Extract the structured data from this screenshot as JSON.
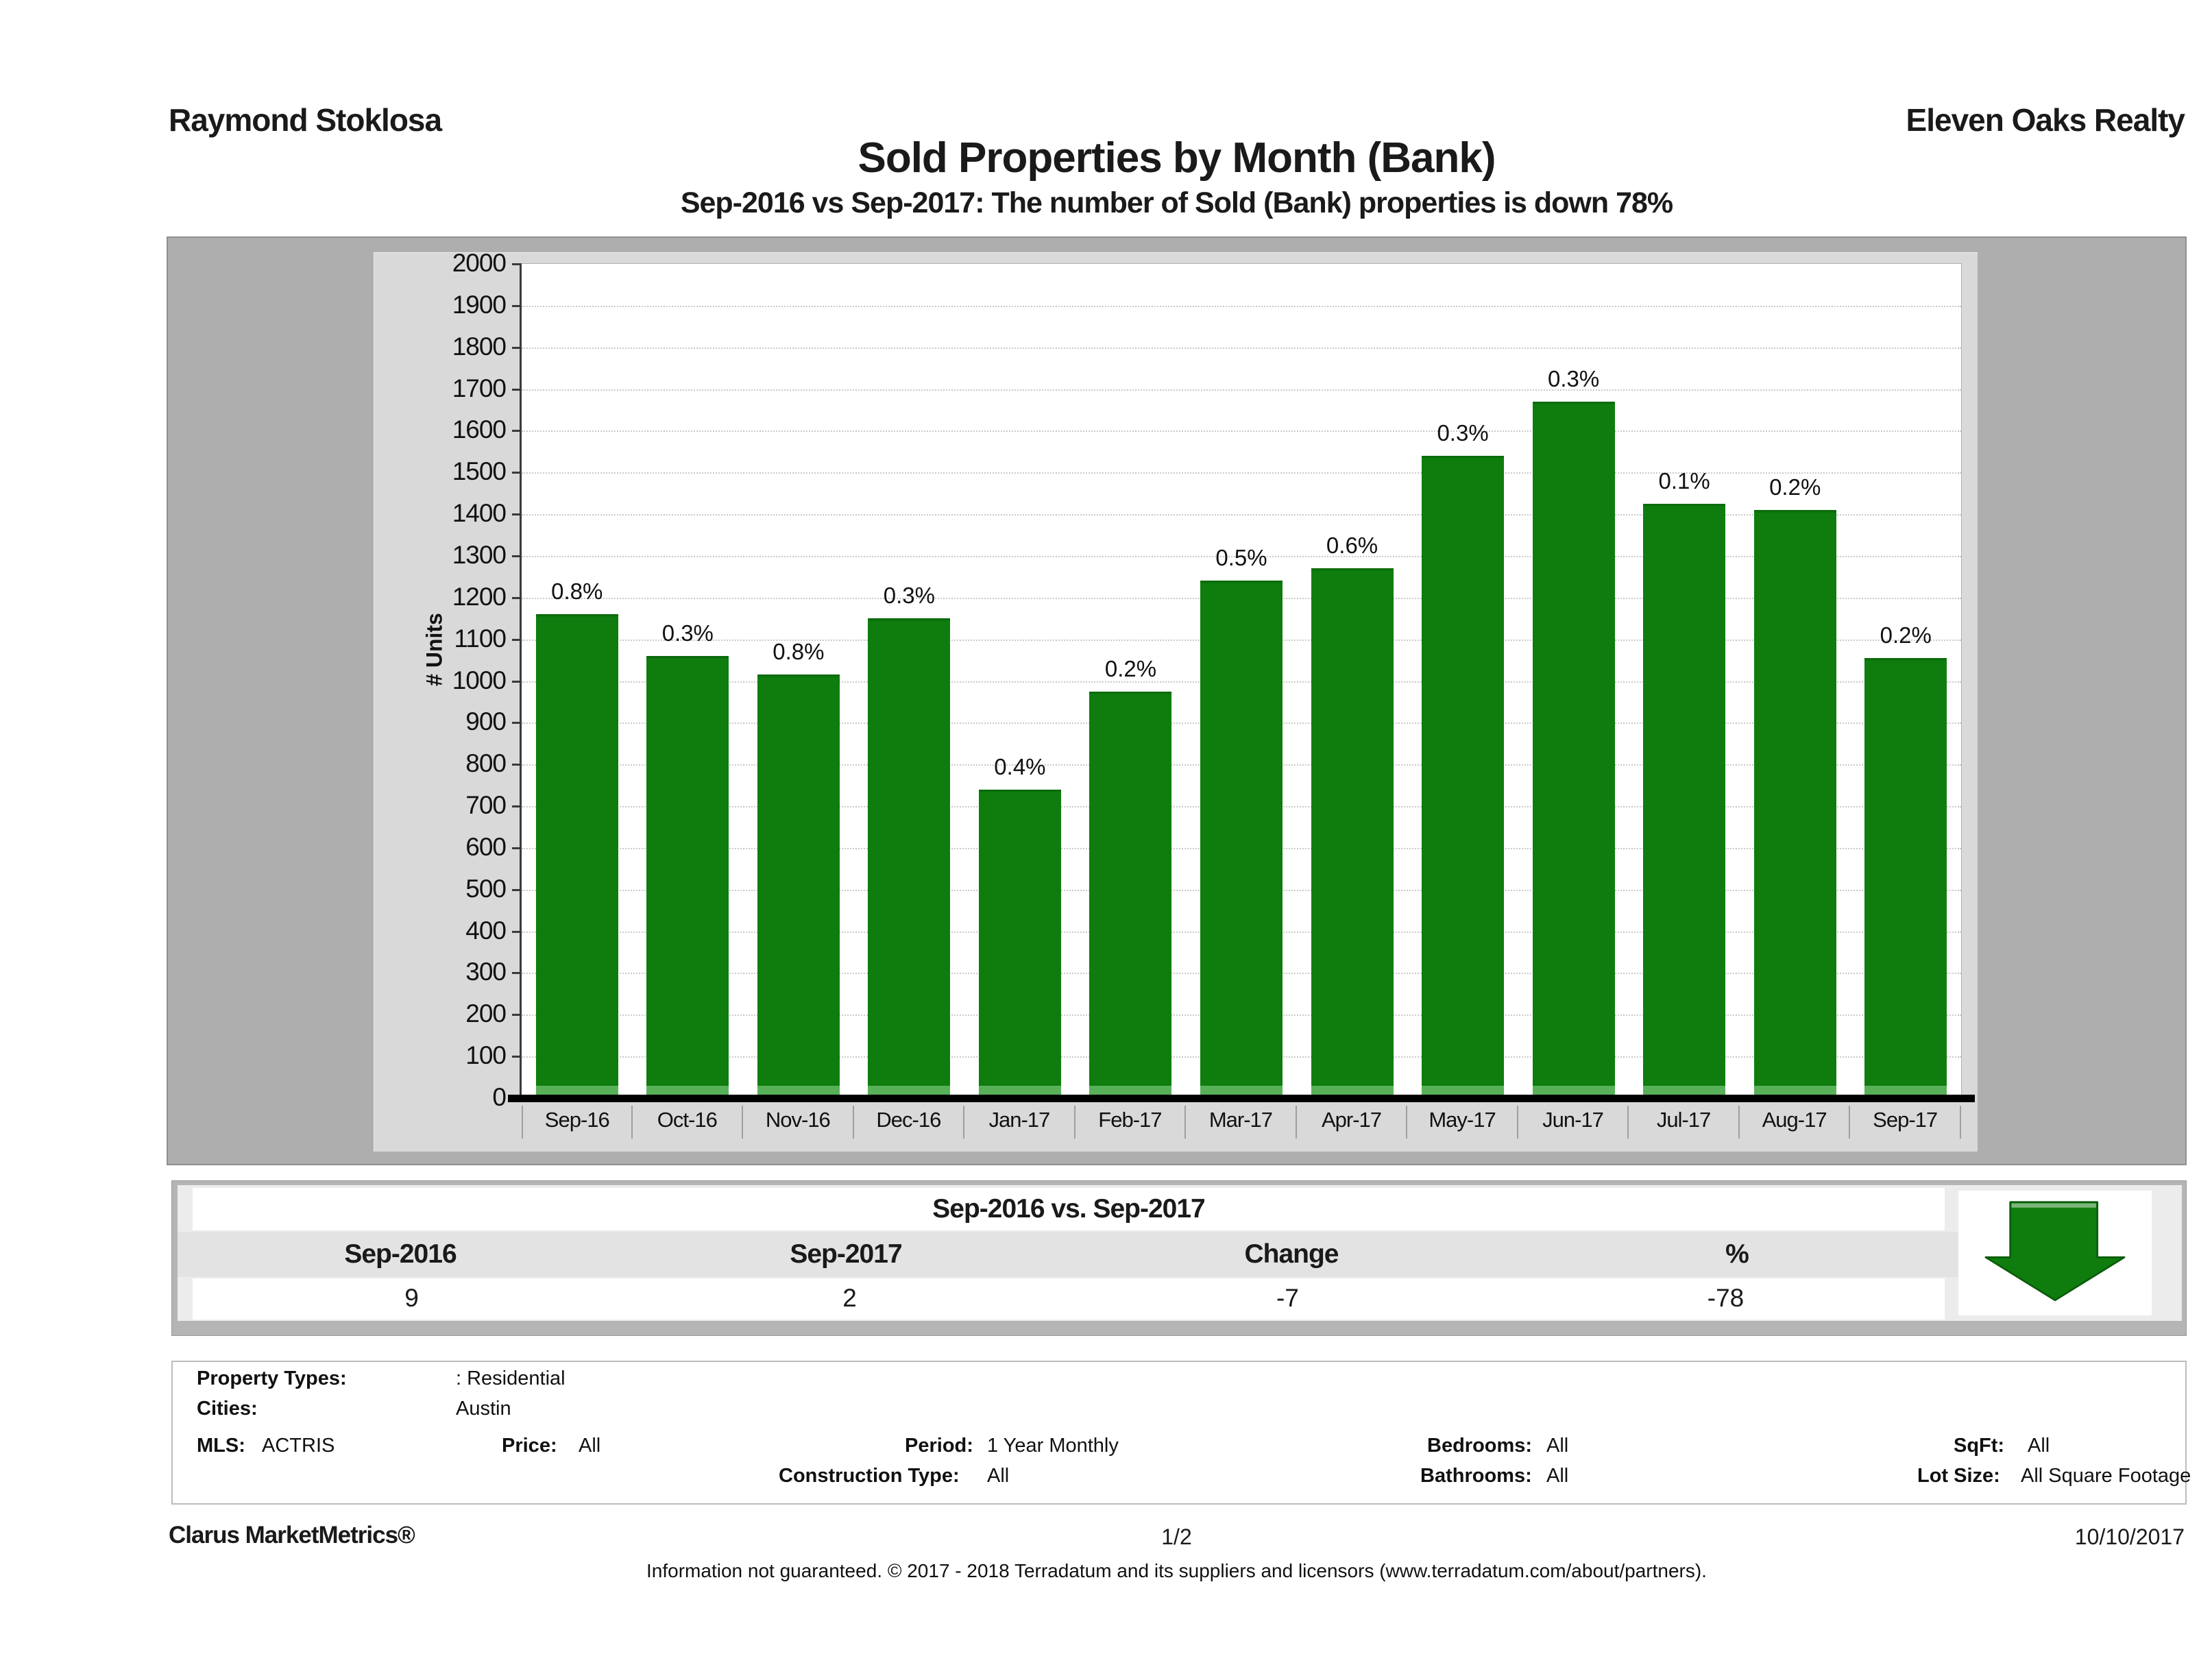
{
  "header": {
    "agent": "Raymond Stoklosa",
    "brokerage": "Eleven Oaks Realty",
    "title": "Sold Properties by Month (Bank)",
    "subtitle": "Sep-2016 vs Sep-2017: The number of Sold (Bank) properties is down 78%"
  },
  "chart_data": {
    "type": "bar",
    "title": "Sold Properties by Month (Bank)",
    "xlabel": "",
    "ylabel": "# Units",
    "ylim": [
      0,
      2000
    ],
    "ytick_step": 100,
    "grid": true,
    "legend": "none",
    "bar_color": "#0e7d0e",
    "categories": [
      "Sep-16",
      "Oct-16",
      "Nov-16",
      "Dec-16",
      "Jan-17",
      "Feb-17",
      "Mar-17",
      "Apr-17",
      "May-17",
      "Jun-17",
      "Jul-17",
      "Aug-17",
      "Sep-17"
    ],
    "values": [
      1160,
      1060,
      1015,
      1150,
      740,
      975,
      1240,
      1270,
      1540,
      1670,
      1425,
      1410,
      1055
    ],
    "bar_labels": [
      "0.8%",
      "0.3%",
      "0.8%",
      "0.3%",
      "0.4%",
      "0.2%",
      "0.5%",
      "0.6%",
      "0.3%",
      "0.3%",
      "0.1%",
      "0.2%",
      "0.2%"
    ]
  },
  "comparison": {
    "title": "Sep-2016 vs. Sep-2017",
    "columns": [
      "Sep-2016",
      "Sep-2017",
      "Change",
      "%"
    ],
    "values": [
      "9",
      "2",
      "-7",
      "-78"
    ],
    "arrow_label": "-78%",
    "arrow_color": "#0e7d0e",
    "arrow_direction": "down"
  },
  "criteria": {
    "property_types_label": "Property Types:",
    "property_types_value": ": Residential",
    "cities_label": "Cities:",
    "cities_value": "Austin",
    "mls_label": "MLS:",
    "mls_value": "ACTRIS",
    "price_label": "Price:",
    "price_value": "All",
    "period_label": "Period:",
    "period_value": "1 Year Monthly",
    "bedrooms_label": "Bedrooms:",
    "bedrooms_value": "All",
    "sqft_label": "SqFt:",
    "sqft_value": "All",
    "construction_label": "Construction Type:",
    "construction_value": "All",
    "bathrooms_label": "Bathrooms:",
    "bathrooms_value": "All",
    "lot_size_label": "Lot Size:",
    "lot_size_value": "All Square Footage"
  },
  "footer": {
    "product": "Clarus MarketMetrics®",
    "page": "1/2",
    "date": "10/10/2017",
    "disclaimer": "Information not guaranteed. © 2017 - 2018 Terradatum and its suppliers and licensors (www.terradatum.com/about/partners)."
  }
}
